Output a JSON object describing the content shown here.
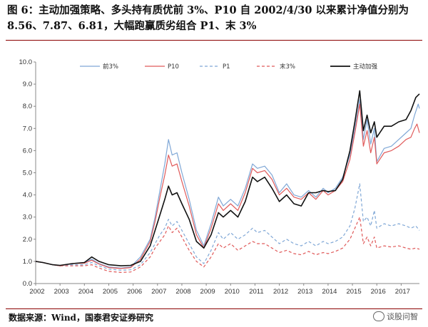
{
  "page": {
    "title": "图 6：主动加强策略、多头持有质优前 3%、P10 自 2002/4/30 以来累计净值分别为 8.56、7.87、6.81，大幅跑赢质劣组合 P1、末 3%",
    "source": "数据来源：Wind，国泰君安证券研究",
    "watermark": "谈股问智"
  },
  "chart_data": {
    "type": "line",
    "ylim": [
      0,
      10
    ],
    "yticks": [
      "0.0",
      "1.0",
      "2.0",
      "3.0",
      "4.0",
      "5.0",
      "6.0",
      "7.0",
      "8.0",
      "9.0",
      "10.0"
    ],
    "xlim": [
      2002.0,
      2017.75
    ],
    "xticks": [
      "2002",
      "2003",
      "2004",
      "2005",
      "2006",
      "2007",
      "2008",
      "2009",
      "2010",
      "2011",
      "2012",
      "2013",
      "2014",
      "2015",
      "2016",
      "2017"
    ],
    "legend_position": "top",
    "series": [
      {
        "name": "前3%",
        "color": "#7fa7d6",
        "dash": "solid",
        "points": [
          [
            2002.0,
            1.0
          ],
          [
            2002.3,
            0.95
          ],
          [
            2002.7,
            0.85
          ],
          [
            2003.0,
            0.8
          ],
          [
            2003.5,
            0.9
          ],
          [
            2004.0,
            0.95
          ],
          [
            2004.3,
            1.1
          ],
          [
            2004.6,
            0.9
          ],
          [
            2005.0,
            0.75
          ],
          [
            2005.5,
            0.7
          ],
          [
            2005.9,
            0.75
          ],
          [
            2006.3,
            1.2
          ],
          [
            2006.7,
            2.0
          ],
          [
            2006.9,
            3.0
          ],
          [
            2007.1,
            4.2
          ],
          [
            2007.3,
            5.4
          ],
          [
            2007.45,
            6.5
          ],
          [
            2007.6,
            5.8
          ],
          [
            2007.8,
            5.9
          ],
          [
            2008.0,
            5.0
          ],
          [
            2008.3,
            3.8
          ],
          [
            2008.6,
            2.4
          ],
          [
            2008.9,
            1.7
          ],
          [
            2009.2,
            2.7
          ],
          [
            2009.5,
            3.9
          ],
          [
            2009.7,
            3.5
          ],
          [
            2010.0,
            3.8
          ],
          [
            2010.3,
            3.5
          ],
          [
            2010.6,
            4.3
          ],
          [
            2010.9,
            5.4
          ],
          [
            2011.1,
            5.2
          ],
          [
            2011.4,
            5.3
          ],
          [
            2011.7,
            4.9
          ],
          [
            2012.0,
            4.1
          ],
          [
            2012.3,
            4.5
          ],
          [
            2012.6,
            4.0
          ],
          [
            2012.9,
            3.9
          ],
          [
            2013.2,
            4.2
          ],
          [
            2013.5,
            3.9
          ],
          [
            2013.8,
            4.3
          ],
          [
            2014.0,
            4.1
          ],
          [
            2014.3,
            4.3
          ],
          [
            2014.6,
            4.8
          ],
          [
            2014.9,
            5.8
          ],
          [
            2015.1,
            7.0
          ],
          [
            2015.3,
            8.3
          ],
          [
            2015.45,
            6.5
          ],
          [
            2015.6,
            7.4
          ],
          [
            2015.75,
            6.3
          ],
          [
            2015.9,
            7.0
          ],
          [
            2016.0,
            5.5
          ],
          [
            2016.3,
            6.1
          ],
          [
            2016.6,
            6.2
          ],
          [
            2016.9,
            6.5
          ],
          [
            2017.2,
            6.8
          ],
          [
            2017.4,
            7.0
          ],
          [
            2017.55,
            7.6
          ],
          [
            2017.7,
            8.1
          ],
          [
            2017.75,
            7.9
          ]
        ]
      },
      {
        "name": "P10",
        "color": "#e05a5a",
        "dash": "solid",
        "points": [
          [
            2002.0,
            1.0
          ],
          [
            2002.3,
            0.95
          ],
          [
            2002.7,
            0.85
          ],
          [
            2003.0,
            0.8
          ],
          [
            2003.5,
            0.9
          ],
          [
            2004.0,
            0.92
          ],
          [
            2004.3,
            1.05
          ],
          [
            2004.6,
            0.88
          ],
          [
            2005.0,
            0.72
          ],
          [
            2005.5,
            0.68
          ],
          [
            2005.9,
            0.72
          ],
          [
            2006.3,
            1.1
          ],
          [
            2006.7,
            1.9
          ],
          [
            2006.9,
            2.8
          ],
          [
            2007.1,
            3.9
          ],
          [
            2007.3,
            4.9
          ],
          [
            2007.45,
            5.8
          ],
          [
            2007.6,
            5.3
          ],
          [
            2007.8,
            5.4
          ],
          [
            2008.0,
            4.6
          ],
          [
            2008.3,
            3.5
          ],
          [
            2008.6,
            2.2
          ],
          [
            2008.9,
            1.6
          ],
          [
            2009.2,
            2.5
          ],
          [
            2009.5,
            3.6
          ],
          [
            2009.7,
            3.3
          ],
          [
            2010.0,
            3.6
          ],
          [
            2010.3,
            3.3
          ],
          [
            2010.6,
            4.1
          ],
          [
            2010.9,
            5.2
          ],
          [
            2011.1,
            5.0
          ],
          [
            2011.4,
            5.1
          ],
          [
            2011.7,
            4.7
          ],
          [
            2012.0,
            4.0
          ],
          [
            2012.3,
            4.3
          ],
          [
            2012.6,
            3.9
          ],
          [
            2012.9,
            3.8
          ],
          [
            2013.2,
            4.1
          ],
          [
            2013.5,
            3.8
          ],
          [
            2013.8,
            4.2
          ],
          [
            2014.0,
            4.0
          ],
          [
            2014.3,
            4.2
          ],
          [
            2014.6,
            4.6
          ],
          [
            2014.9,
            5.6
          ],
          [
            2015.1,
            6.8
          ],
          [
            2015.3,
            8.1
          ],
          [
            2015.45,
            6.2
          ],
          [
            2015.6,
            6.9
          ],
          [
            2015.75,
            5.9
          ],
          [
            2015.9,
            6.6
          ],
          [
            2016.0,
            5.4
          ],
          [
            2016.3,
            5.9
          ],
          [
            2016.6,
            6.0
          ],
          [
            2016.9,
            6.2
          ],
          [
            2017.2,
            6.5
          ],
          [
            2017.4,
            6.6
          ],
          [
            2017.55,
            7.0
          ],
          [
            2017.65,
            7.2
          ],
          [
            2017.75,
            6.8
          ]
        ]
      },
      {
        "name": "P1",
        "color": "#7fa7d6",
        "dash": "dashed",
        "points": [
          [
            2002.0,
            1.0
          ],
          [
            2002.3,
            0.95
          ],
          [
            2002.7,
            0.85
          ],
          [
            2003.0,
            0.82
          ],
          [
            2003.5,
            0.85
          ],
          [
            2004.0,
            0.85
          ],
          [
            2004.3,
            0.95
          ],
          [
            2004.6,
            0.8
          ],
          [
            2005.0,
            0.65
          ],
          [
            2005.5,
            0.6
          ],
          [
            2005.9,
            0.62
          ],
          [
            2006.3,
            0.85
          ],
          [
            2006.7,
            1.4
          ],
          [
            2006.9,
            1.8
          ],
          [
            2007.1,
            2.2
          ],
          [
            2007.3,
            2.5
          ],
          [
            2007.45,
            2.9
          ],
          [
            2007.6,
            2.6
          ],
          [
            2007.8,
            2.8
          ],
          [
            2008.0,
            2.4
          ],
          [
            2008.3,
            1.8
          ],
          [
            2008.6,
            1.2
          ],
          [
            2008.9,
            0.9
          ],
          [
            2009.2,
            1.5
          ],
          [
            2009.5,
            2.3
          ],
          [
            2009.7,
            2.0
          ],
          [
            2010.0,
            2.3
          ],
          [
            2010.3,
            2.0
          ],
          [
            2010.6,
            2.2
          ],
          [
            2010.9,
            2.5
          ],
          [
            2011.1,
            2.3
          ],
          [
            2011.4,
            2.4
          ],
          [
            2011.7,
            2.1
          ],
          [
            2012.0,
            1.8
          ],
          [
            2012.3,
            2.0
          ],
          [
            2012.6,
            1.8
          ],
          [
            2012.9,
            1.7
          ],
          [
            2013.2,
            1.9
          ],
          [
            2013.5,
            1.7
          ],
          [
            2013.8,
            1.9
          ],
          [
            2014.0,
            1.8
          ],
          [
            2014.3,
            1.9
          ],
          [
            2014.6,
            2.1
          ],
          [
            2014.9,
            2.6
          ],
          [
            2015.1,
            3.4
          ],
          [
            2015.3,
            4.5
          ],
          [
            2015.45,
            2.8
          ],
          [
            2015.6,
            3.0
          ],
          [
            2015.75,
            2.6
          ],
          [
            2015.9,
            3.3
          ],
          [
            2016.0,
            2.5
          ],
          [
            2016.3,
            2.7
          ],
          [
            2016.6,
            2.6
          ],
          [
            2016.9,
            2.7
          ],
          [
            2017.2,
            2.6
          ],
          [
            2017.4,
            2.5
          ],
          [
            2017.6,
            2.6
          ],
          [
            2017.75,
            2.4
          ]
        ]
      },
      {
        "name": "末3%",
        "color": "#e05a5a",
        "dash": "dashed",
        "points": [
          [
            2002.0,
            1.0
          ],
          [
            2002.3,
            0.95
          ],
          [
            2002.7,
            0.85
          ],
          [
            2003.0,
            0.8
          ],
          [
            2003.5,
            0.8
          ],
          [
            2004.0,
            0.8
          ],
          [
            2004.3,
            0.85
          ],
          [
            2004.6,
            0.7
          ],
          [
            2005.0,
            0.55
          ],
          [
            2005.5,
            0.5
          ],
          [
            2005.9,
            0.52
          ],
          [
            2006.3,
            0.75
          ],
          [
            2006.7,
            1.2
          ],
          [
            2006.9,
            1.6
          ],
          [
            2007.1,
            1.9
          ],
          [
            2007.3,
            2.2
          ],
          [
            2007.45,
            2.6
          ],
          [
            2007.6,
            2.3
          ],
          [
            2007.8,
            2.5
          ],
          [
            2008.0,
            2.1
          ],
          [
            2008.3,
            1.5
          ],
          [
            2008.6,
            1.0
          ],
          [
            2008.9,
            0.75
          ],
          [
            2009.2,
            1.2
          ],
          [
            2009.5,
            1.8
          ],
          [
            2009.7,
            1.6
          ],
          [
            2010.0,
            1.8
          ],
          [
            2010.3,
            1.5
          ],
          [
            2010.6,
            1.7
          ],
          [
            2010.9,
            1.9
          ],
          [
            2011.1,
            1.8
          ],
          [
            2011.4,
            1.8
          ],
          [
            2011.7,
            1.6
          ],
          [
            2012.0,
            1.4
          ],
          [
            2012.3,
            1.5
          ],
          [
            2012.6,
            1.35
          ],
          [
            2012.9,
            1.3
          ],
          [
            2013.2,
            1.45
          ],
          [
            2013.5,
            1.3
          ],
          [
            2013.8,
            1.4
          ],
          [
            2014.0,
            1.35
          ],
          [
            2014.3,
            1.45
          ],
          [
            2014.6,
            1.6
          ],
          [
            2014.9,
            2.0
          ],
          [
            2015.1,
            2.5
          ],
          [
            2015.3,
            3.0
          ],
          [
            2015.45,
            1.8
          ],
          [
            2015.6,
            2.1
          ],
          [
            2015.75,
            1.7
          ],
          [
            2015.9,
            2.1
          ],
          [
            2016.0,
            1.6
          ],
          [
            2016.3,
            1.7
          ],
          [
            2016.6,
            1.65
          ],
          [
            2016.9,
            1.7
          ],
          [
            2017.2,
            1.6
          ],
          [
            2017.4,
            1.55
          ],
          [
            2017.6,
            1.6
          ],
          [
            2017.75,
            1.55
          ]
        ]
      },
      {
        "name": "主动加强",
        "color": "#111111",
        "dash": "solid",
        "points": [
          [
            2002.0,
            1.0
          ],
          [
            2002.3,
            0.95
          ],
          [
            2002.7,
            0.85
          ],
          [
            2003.0,
            0.82
          ],
          [
            2003.5,
            0.9
          ],
          [
            2004.0,
            0.95
          ],
          [
            2004.3,
            1.2
          ],
          [
            2004.6,
            1.0
          ],
          [
            2005.0,
            0.85
          ],
          [
            2005.5,
            0.8
          ],
          [
            2005.9,
            0.82
          ],
          [
            2006.3,
            1.0
          ],
          [
            2006.7,
            1.7
          ],
          [
            2006.9,
            2.4
          ],
          [
            2007.1,
            3.1
          ],
          [
            2007.3,
            3.8
          ],
          [
            2007.45,
            4.4
          ],
          [
            2007.6,
            4.0
          ],
          [
            2007.8,
            4.1
          ],
          [
            2008.0,
            3.6
          ],
          [
            2008.3,
            2.9
          ],
          [
            2008.6,
            1.9
          ],
          [
            2008.9,
            1.6
          ],
          [
            2009.2,
            2.2
          ],
          [
            2009.5,
            3.2
          ],
          [
            2009.7,
            3.0
          ],
          [
            2010.0,
            3.3
          ],
          [
            2010.3,
            3.0
          ],
          [
            2010.6,
            3.7
          ],
          [
            2010.9,
            4.8
          ],
          [
            2011.1,
            4.6
          ],
          [
            2011.4,
            4.8
          ],
          [
            2011.7,
            4.3
          ],
          [
            2012.0,
            3.7
          ],
          [
            2012.3,
            4.0
          ],
          [
            2012.6,
            3.6
          ],
          [
            2012.9,
            3.5
          ],
          [
            2013.2,
            4.1
          ],
          [
            2013.5,
            4.1
          ],
          [
            2013.8,
            4.2
          ],
          [
            2014.0,
            4.15
          ],
          [
            2014.3,
            4.2
          ],
          [
            2014.6,
            4.7
          ],
          [
            2014.9,
            6.0
          ],
          [
            2015.1,
            7.3
          ],
          [
            2015.3,
            8.7
          ],
          [
            2015.45,
            6.9
          ],
          [
            2015.6,
            7.6
          ],
          [
            2015.75,
            6.8
          ],
          [
            2015.9,
            7.3
          ],
          [
            2016.0,
            6.6
          ],
          [
            2016.3,
            7.1
          ],
          [
            2016.6,
            7.1
          ],
          [
            2016.9,
            7.3
          ],
          [
            2017.2,
            7.4
          ],
          [
            2017.4,
            7.8
          ],
          [
            2017.6,
            8.4
          ],
          [
            2017.75,
            8.56
          ]
        ]
      }
    ]
  }
}
